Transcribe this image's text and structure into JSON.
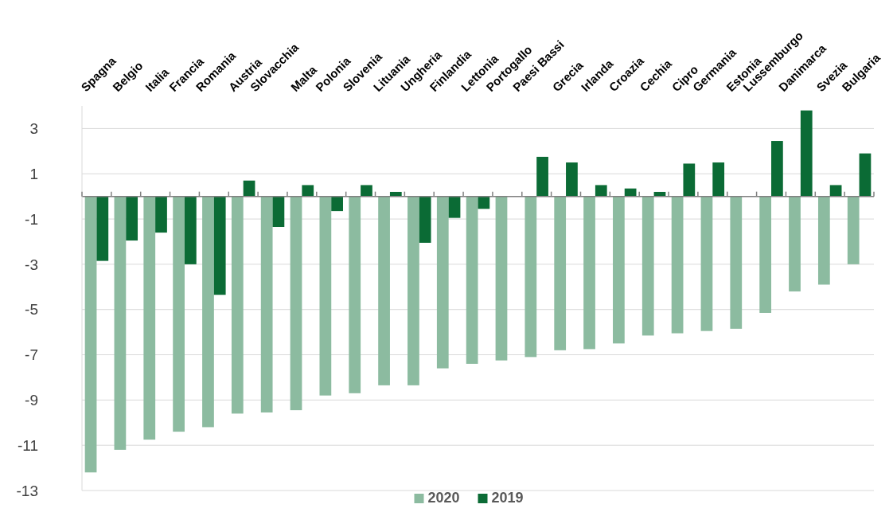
{
  "chart_data": {
    "type": "bar",
    "categories": [
      "Spagna",
      "Belgio",
      "Italia",
      "Francia",
      "Romania",
      "Austria",
      "Slovacchia",
      "Malta",
      "Polonia",
      "Slovenia",
      "Lituania",
      "Ungheria",
      "Finlandia",
      "Lettonia",
      "Portogallo",
      "Paesi Bassi",
      "Grecia",
      "Irlanda",
      "Croazia",
      "Cechia",
      "Cipro",
      "Germania",
      "Estonia",
      "Lussemburgo",
      "Danimarca",
      "Svezia",
      "Bulgaria"
    ],
    "series": [
      {
        "name": "2020",
        "color": "#8cbba0",
        "values": [
          -12.2,
          -11.2,
          -10.75,
          -10.4,
          -10.2,
          -9.6,
          -9.55,
          -9.45,
          -8.8,
          -8.7,
          -8.35,
          -8.35,
          -7.6,
          -7.4,
          -7.25,
          -7.1,
          -6.8,
          -6.75,
          -6.5,
          -6.15,
          -6.05,
          -5.95,
          -5.85,
          -5.15,
          -4.2,
          -3.9,
          -3.0
        ]
      },
      {
        "name": "2019",
        "color": "#0b6b35",
        "values": [
          -2.85,
          -1.95,
          -1.6,
          -3.0,
          -4.35,
          0.7,
          -1.35,
          0.5,
          -0.65,
          0.5,
          0.2,
          -2.05,
          -0.95,
          -0.55,
          null,
          1.75,
          1.5,
          0.5,
          0.35,
          0.2,
          1.45,
          1.5,
          null,
          2.45,
          3.8,
          0.5,
          1.9
        ]
      }
    ],
    "ylim": [
      -13,
      4
    ],
    "yticks": [
      -13,
      -11,
      -9,
      -7,
      -5,
      -3,
      -1,
      1,
      3
    ],
    "grid": "y",
    "legend": "bottom"
  }
}
